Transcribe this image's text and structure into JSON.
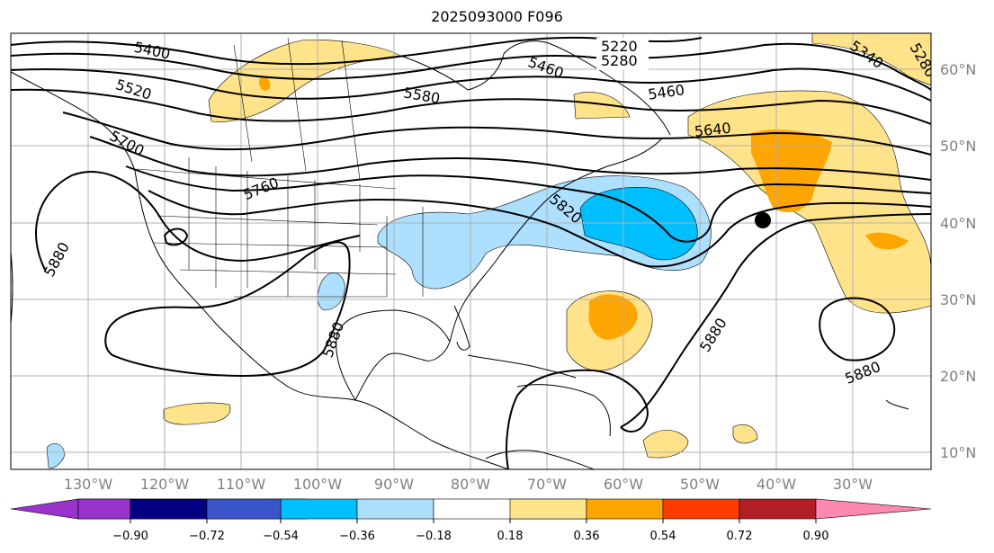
{
  "title": "2025093000 F096",
  "map": {
    "lon_labels": [
      "130°W",
      "120°W",
      "110°W",
      "100°W",
      "90°W",
      "80°W",
      "70°W",
      "60°W",
      "50°W",
      "40°W",
      "30°W"
    ],
    "lat_labels": [
      "60°N",
      "50°N",
      "40°N",
      "30°N",
      "20°N",
      "10°N"
    ],
    "contour_labels": [
      "5220",
      "5280",
      "5340",
      "5280",
      "5400",
      "5460",
      "5460",
      "5520",
      "5580",
      "5640",
      "5700",
      "5760",
      "5820",
      "5880",
      "5880",
      "5880",
      "5880"
    ],
    "marker": "black-dot"
  },
  "colorbar": {
    "ticks": [
      "−0.90",
      "−0.72",
      "−0.54",
      "−0.36",
      "−0.18",
      "0.18",
      "0.36",
      "0.54",
      "0.72",
      "0.90"
    ],
    "colors": [
      "#9933cc",
      "#000080",
      "#3a55c9",
      "#00bfff",
      "#addfff",
      "#ffffff",
      "#ffe38a",
      "#ffa500",
      "#ff3c00",
      "#b21f24",
      "#ff88b0"
    ]
  }
}
